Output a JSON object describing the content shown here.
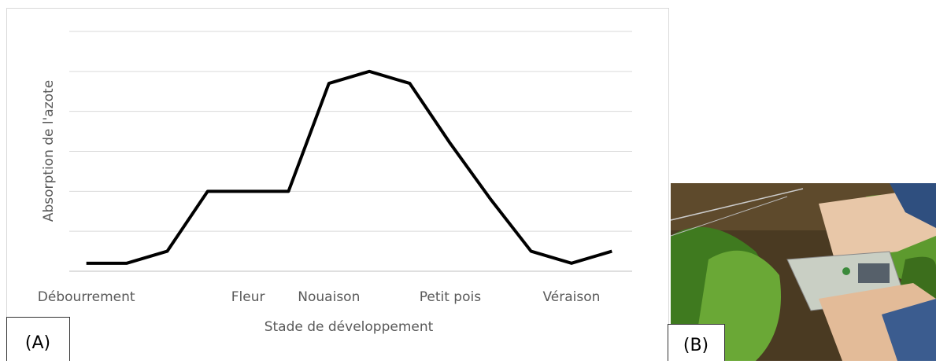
{
  "chart_data": {
    "type": "line",
    "categories": [
      "Débourrement",
      null,
      null,
      null,
      "Fleur",
      null,
      "Nouaison",
      null,
      null,
      "Petit pois",
      null,
      null,
      "Véraison",
      null
    ],
    "series": [
      {
        "name": "Absorption de l'azote",
        "color": "#000000",
        "values": [
          0.2,
          0.2,
          0.5,
          2,
          2,
          2,
          4.7,
          5,
          4.7,
          3.2,
          1.8,
          0.5,
          0.2,
          0.5
        ]
      }
    ],
    "y_label": "Absorption de l'azote",
    "x_label": "Stade de développement",
    "ylim": [
      0,
      6
    ],
    "yticks": [
      0,
      1,
      2,
      3,
      4,
      5,
      6
    ],
    "grid": true
  },
  "panel_labels": [
    "(A)",
    "(B)"
  ]
}
